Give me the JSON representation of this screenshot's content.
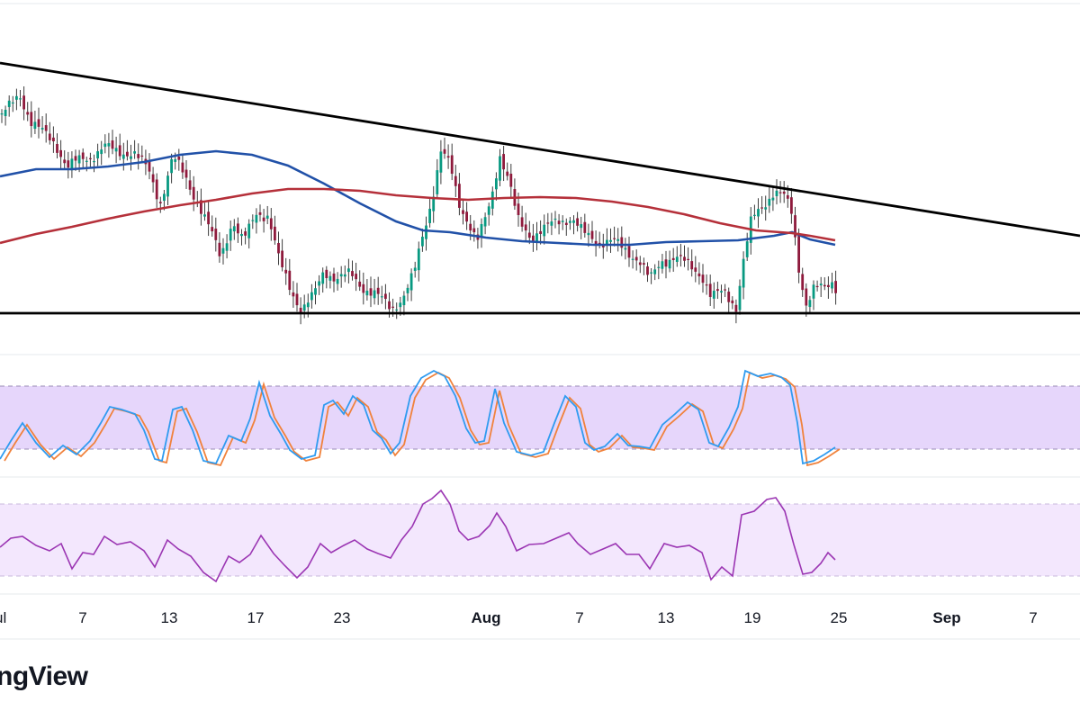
{
  "brand": {
    "text": "ngView"
  },
  "chart_data": [
    {
      "type": "candlestick",
      "panel": "price",
      "overlays": [
        {
          "name": "",
          "kind": "moving-average",
          "color": "#2151a8"
        },
        {
          "name": "",
          "kind": "moving-average",
          "color": "#b5303a"
        },
        {
          "name": "",
          "kind": "trendline-descending",
          "color": "#000000"
        },
        {
          "name": "",
          "kind": "horizontal-support",
          "color": "#000000"
        }
      ],
      "colors": {
        "up": "#089981",
        "down": "#8e1a3c",
        "wick": "#3d3d3d"
      },
      "grid": false
    },
    {
      "type": "line",
      "panel": "stochastic",
      "band": {
        "fill": "#e6d6fb",
        "border": "#9a8cb4",
        "style": "dashed"
      },
      "series": [
        {
          "name": "",
          "color": "#2f9bf0"
        },
        {
          "name": "",
          "color": "#f0823c"
        }
      ]
    },
    {
      "type": "line",
      "panel": "rsi",
      "band": {
        "fill": "#f3e7fd",
        "border": "#c9b8dc",
        "style": "dashed"
      },
      "series": [
        {
          "name": "",
          "color": "#9b36b3"
        }
      ]
    }
  ],
  "x_axis": {
    "ticks": [
      "ul",
      "7",
      "13",
      "17",
      "23",
      "Aug",
      "7",
      "13",
      "19",
      "25",
      "Sep",
      "7"
    ],
    "bold": [
      false,
      false,
      false,
      false,
      false,
      true,
      false,
      false,
      false,
      false,
      true,
      false
    ]
  }
}
